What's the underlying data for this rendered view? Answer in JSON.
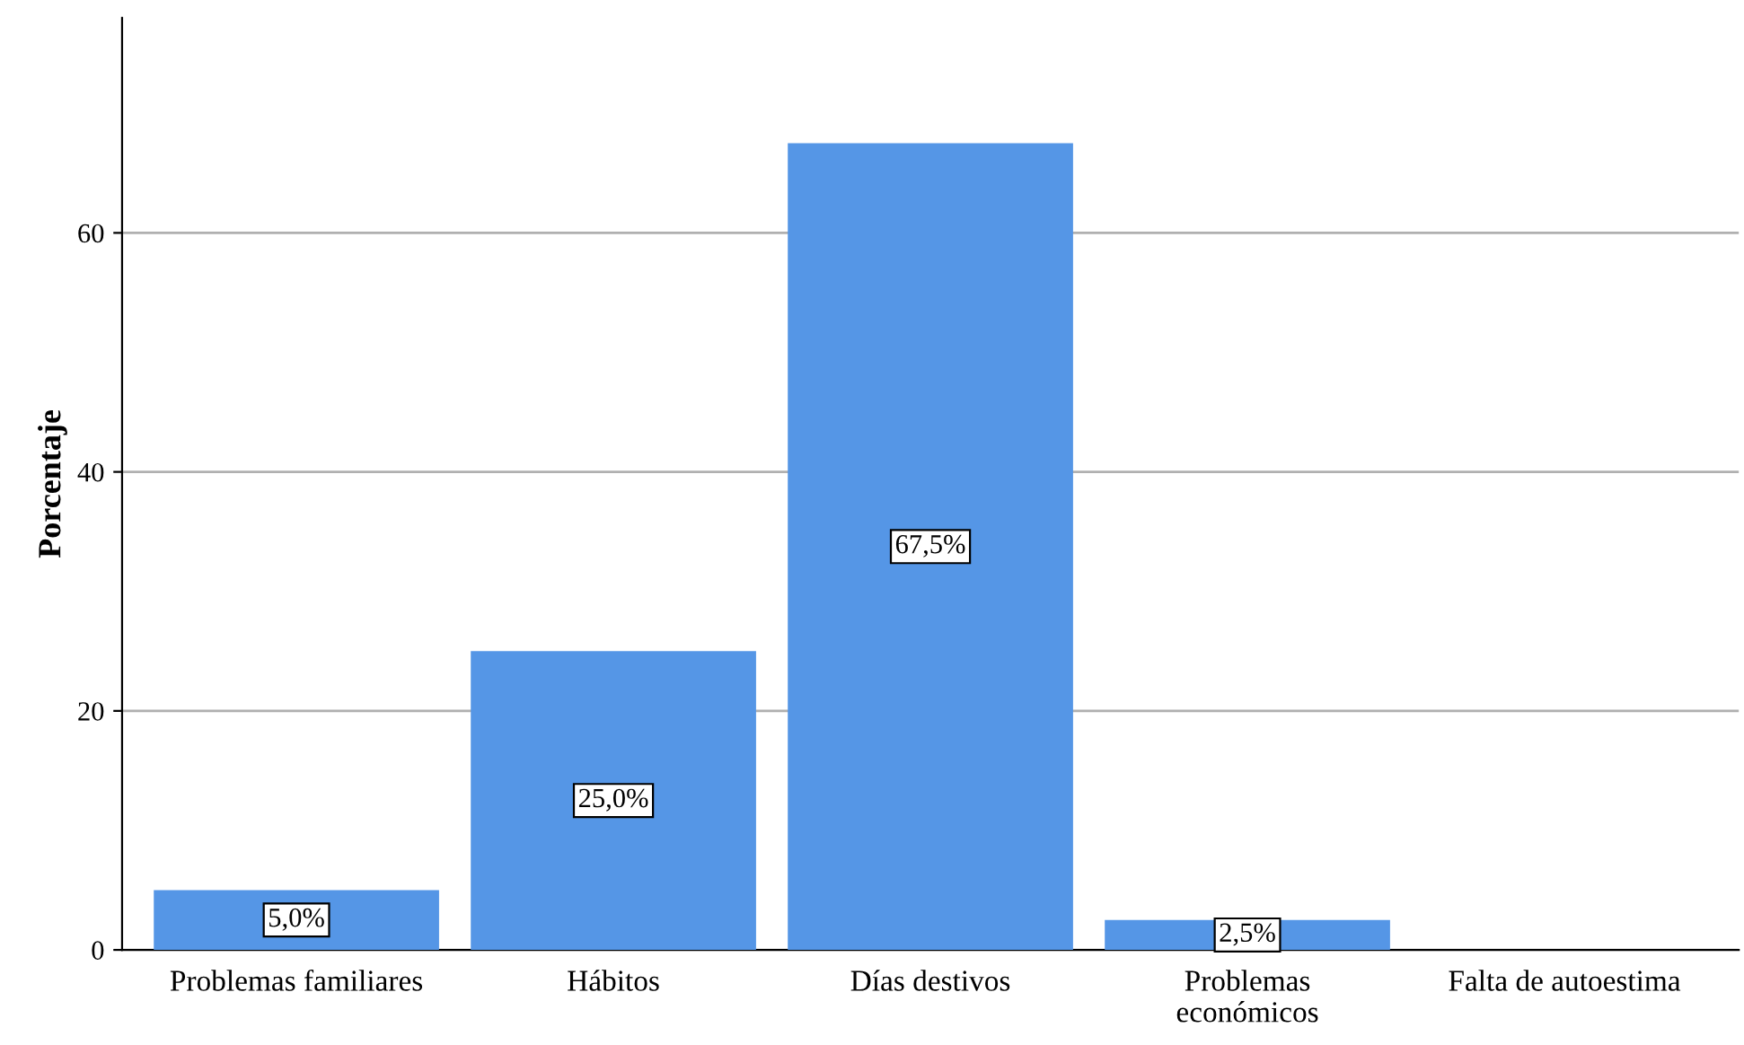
{
  "chart_data": {
    "type": "bar",
    "ylabel": "Porcentaje",
    "categories": [
      "Problemas familiares",
      "Hábitos",
      "Días destivos",
      "Problemas\neconómicos",
      "Falta de autoestima"
    ],
    "values": [
      5.0,
      25.0,
      67.5,
      2.5,
      0
    ],
    "value_labels": [
      "5,0%",
      "25,0%",
      "67,5%",
      "2,5%",
      null
    ],
    "color": "#5596e6",
    "ylim": [
      0,
      78
    ],
    "yticks": [
      0,
      20,
      40,
      60
    ],
    "grid": "y",
    "legend": false
  }
}
